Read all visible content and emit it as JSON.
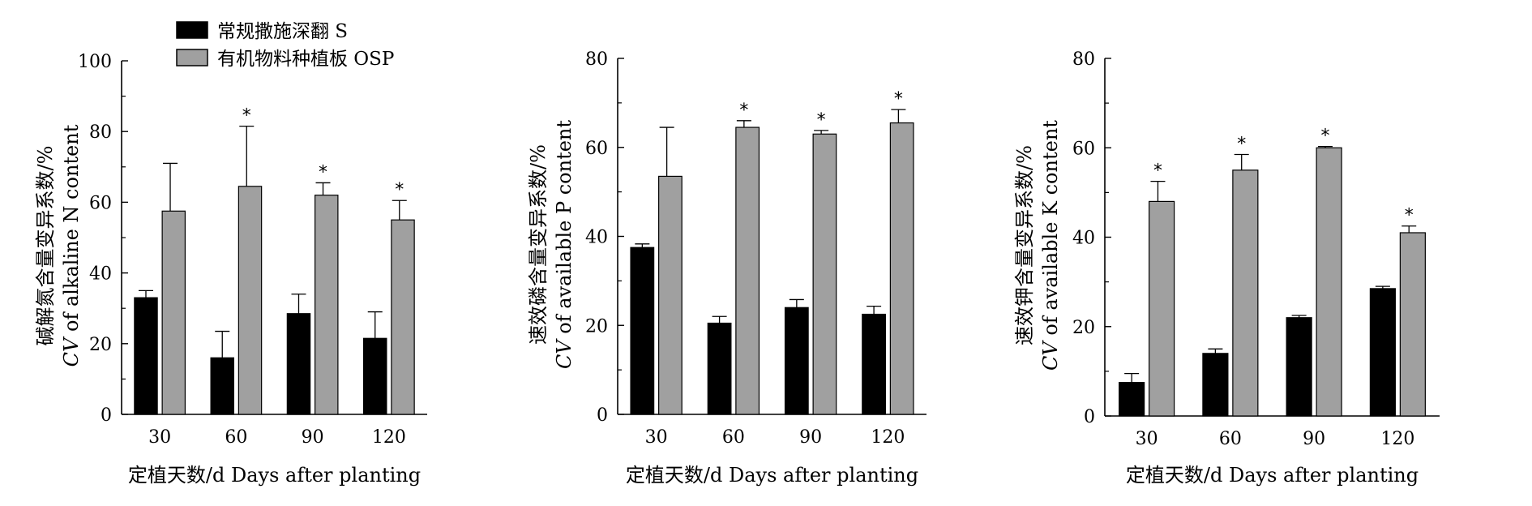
{
  "legend": {
    "items": [
      {
        "label": "常规撒施深翻 S",
        "color": "#000000"
      },
      {
        "label": "有机物料种植板 OSP",
        "color": "#a0a0a0"
      }
    ]
  },
  "chart_data": [
    {
      "type": "bar",
      "categories": [
        "30",
        "60",
        "90",
        "120"
      ],
      "series": [
        {
          "name": "常规撒施深翻 S",
          "values": [
            33,
            16,
            28.5,
            21.5
          ],
          "errors": [
            2,
            7.5,
            5.5,
            7.5
          ]
        },
        {
          "name": "有机物料种植板 OSP",
          "values": [
            57.5,
            64.5,
            62,
            55
          ],
          "errors": [
            13.5,
            17,
            3.5,
            5.5
          ]
        }
      ],
      "significance": [
        "",
        "*",
        "*",
        "*"
      ],
      "ylabel_cn": "碱解氮含量变异系数/%",
      "ylabel_en": "CV of alkaline N content",
      "xlabel": "定植天数/d  Days after planting",
      "ylim": [
        0,
        100
      ],
      "yticks": [
        "0",
        "20",
        "40",
        "60",
        "80",
        "100"
      ]
    },
    {
      "type": "bar",
      "categories": [
        "30",
        "60",
        "90",
        "120"
      ],
      "series": [
        {
          "name": "常规撒施深翻 S",
          "values": [
            37.5,
            20.5,
            24,
            22.5
          ],
          "errors": [
            0.8,
            1.5,
            1.8,
            1.8
          ]
        },
        {
          "name": "有机物料种植板 OSP",
          "values": [
            53.5,
            64.5,
            63,
            65.5
          ],
          "errors": [
            11,
            1.5,
            0.8,
            3
          ]
        }
      ],
      "significance": [
        "",
        "*",
        "*",
        "*"
      ],
      "ylabel_cn": "速效磷含量变异系数/%",
      "ylabel_en": "CV of available P content",
      "xlabel": "定植天数/d  Days after planting",
      "ylim": [
        0,
        80
      ],
      "yticks": [
        "0",
        "20",
        "40",
        "60",
        "80"
      ]
    },
    {
      "type": "bar",
      "categories": [
        "30",
        "60",
        "90",
        "120"
      ],
      "series": [
        {
          "name": "常规撒施深翻 S",
          "values": [
            7.5,
            14,
            22,
            28.5
          ],
          "errors": [
            2,
            1,
            0.5,
            0.5
          ]
        },
        {
          "name": "有机物料种植板 OSP",
          "values": [
            48,
            55,
            60,
            41
          ],
          "errors": [
            4.5,
            3.5,
            0.3,
            1.5
          ]
        }
      ],
      "significance": [
        "*",
        "*",
        "*",
        "*"
      ],
      "ylabel_cn": "速效钾含量变异系数/%",
      "ylabel_en": "CV of available K content",
      "xlabel": "定植天数/d  Days after planting",
      "ylim": [
        0,
        80
      ],
      "yticks": [
        "0",
        "20",
        "40",
        "60",
        "80"
      ]
    }
  ]
}
